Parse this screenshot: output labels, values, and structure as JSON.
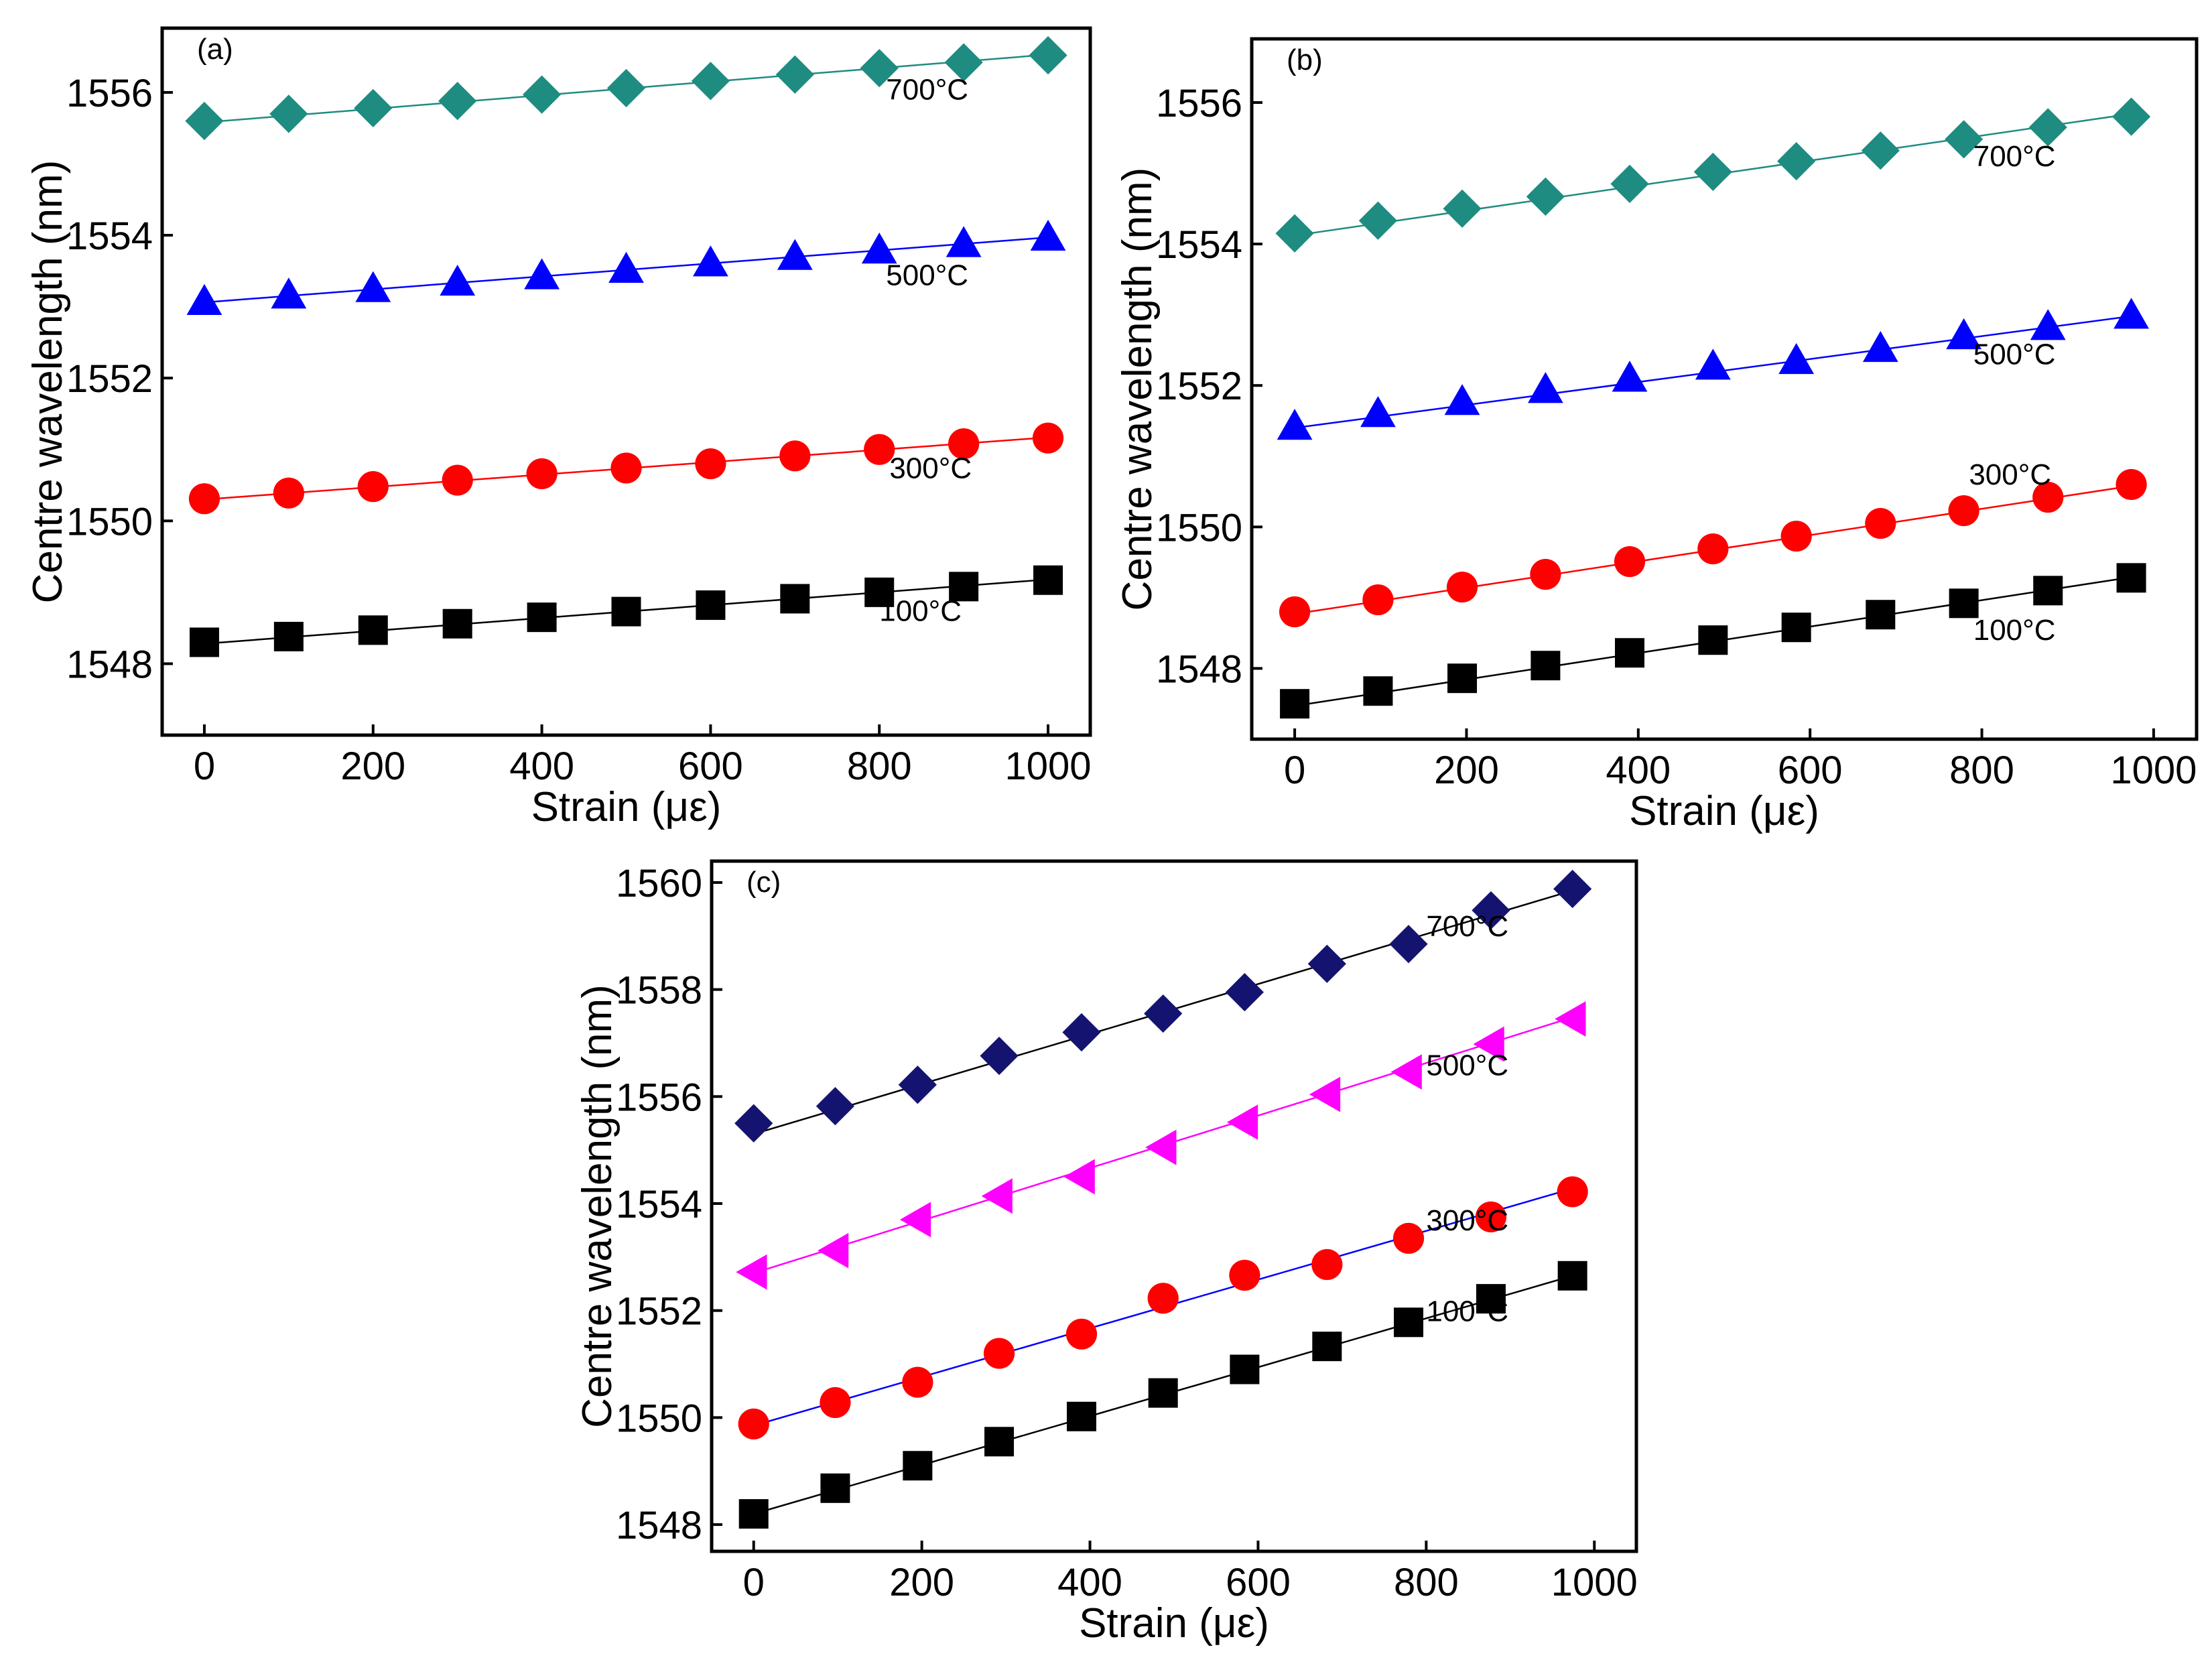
{
  "chart_data": [
    {
      "type": "scatter",
      "panel_label": "(a)",
      "xlabel": "Strain (με)",
      "ylabel": "Centre wavelength (nm)",
      "xlim": [
        -50,
        1050
      ],
      "ylim": [
        1547,
        1556.9
      ],
      "xticks": [
        "0",
        "200",
        "400",
        "600",
        "800",
        "1000"
      ],
      "yticks": [
        "1548",
        "1550",
        "1552",
        "1554",
        "1556"
      ],
      "xtick_values": [
        0,
        200,
        400,
        600,
        800,
        1000
      ],
      "ytick_values": [
        1548,
        1550,
        1552,
        1554,
        1556
      ],
      "grid": false,
      "legend": "none",
      "series": [
        {
          "name": "100°C",
          "marker": "square",
          "color": "#000000",
          "line_color": "#000000",
          "x": [
            0,
            100,
            200,
            300,
            400,
            500,
            600,
            700,
            800,
            900,
            1000
          ],
          "values": [
            1548.3,
            1548.38,
            1548.47,
            1548.56,
            1548.65,
            1548.73,
            1548.82,
            1548.91,
            1549.0,
            1549.08,
            1549.17
          ],
          "fit": [
            1548.28,
            1549.18
          ],
          "label": "100°C",
          "label_at": [
            800,
            1548.6
          ]
        },
        {
          "name": "300°C",
          "marker": "circle",
          "color": "#ff0000",
          "line_color": "#ff0000",
          "x": [
            0,
            100,
            200,
            300,
            400,
            500,
            600,
            700,
            800,
            900,
            1000
          ],
          "values": [
            1550.31,
            1550.39,
            1550.48,
            1550.57,
            1550.66,
            1550.74,
            1550.8,
            1550.91,
            1551.0,
            1551.08,
            1551.16
          ],
          "fit": [
            1550.3,
            1551.17
          ],
          "label": "300°C",
          "label_at": [
            812,
            1550.6
          ]
        },
        {
          "name": "500°C",
          "marker": "triangle-up",
          "color": "#0000ff",
          "line_color": "#0000ff",
          "x": [
            0,
            100,
            200,
            300,
            400,
            500,
            600,
            700,
            800,
            900,
            1000
          ],
          "values": [
            1553.07,
            1553.16,
            1553.25,
            1553.34,
            1553.43,
            1553.52,
            1553.61,
            1553.7,
            1553.79,
            1553.88,
            1553.97
          ],
          "fit": [
            1553.06,
            1553.97
          ],
          "label": "500°C",
          "label_at": [
            808,
            1553.3
          ]
        },
        {
          "name": "700°C",
          "marker": "diamond",
          "color": "#1e8c80",
          "line_color": "#1e8c80",
          "x": [
            0,
            100,
            200,
            300,
            400,
            500,
            600,
            700,
            800,
            900,
            1000
          ],
          "values": [
            1555.6,
            1555.7,
            1555.78,
            1555.88,
            1555.97,
            1556.06,
            1556.16,
            1556.25,
            1556.34,
            1556.42,
            1556.52
          ],
          "fit": [
            1555.58,
            1556.53
          ],
          "label": "700°C",
          "label_at": [
            808,
            1555.9
          ]
        }
      ]
    },
    {
      "type": "scatter",
      "panel_label": "(b)",
      "xlabel": "Strain (με)",
      "ylabel": "Centre wavelength (nm)",
      "xlim": [
        -50,
        1050
      ],
      "ylim": [
        1547,
        1556.9
      ],
      "xticks": [
        "0",
        "200",
        "400",
        "600",
        "800",
        "1000"
      ],
      "yticks": [
        "1548",
        "1550",
        "1552",
        "1554",
        "1556"
      ],
      "xtick_values": [
        0,
        200,
        400,
        600,
        800,
        1000
      ],
      "ytick_values": [
        1548,
        1550,
        1552,
        1554,
        1556
      ],
      "grid": false,
      "legend": "none",
      "series": [
        {
          "name": "100°C",
          "marker": "square",
          "color": "#000000",
          "line_color": "#000000",
          "x": [
            0,
            97,
            195,
            292,
            390,
            487,
            584,
            682,
            779,
            877,
            974
          ],
          "values": [
            1547.5,
            1547.68,
            1547.86,
            1548.04,
            1548.22,
            1548.4,
            1548.58,
            1548.76,
            1548.92,
            1549.1,
            1549.28
          ],
          "fit": [
            1547.47,
            1549.29
          ],
          "label": "100°C",
          "label_at": [
            790,
            1548.4
          ]
        },
        {
          "name": "300°C",
          "marker": "circle",
          "color": "#ff0000",
          "line_color": "#ff0000",
          "x": [
            0,
            97,
            195,
            292,
            390,
            487,
            584,
            682,
            779,
            877,
            974
          ],
          "values": [
            1548.8,
            1548.97,
            1549.15,
            1549.33,
            1549.51,
            1549.69,
            1549.87,
            1550.05,
            1550.23,
            1550.42,
            1550.6
          ],
          "fit": [
            1548.77,
            1550.58
          ],
          "label": "300°C",
          "label_at": [
            785,
            1550.6
          ]
        },
        {
          "name": "500°C",
          "marker": "triangle-up",
          "color": "#0000ff",
          "line_color": "#0000ff",
          "x": [
            0,
            97,
            195,
            292,
            390,
            487,
            584,
            682,
            779,
            877,
            974
          ],
          "values": [
            1551.42,
            1551.6,
            1551.77,
            1551.94,
            1552.1,
            1552.27,
            1552.35,
            1552.52,
            1552.7,
            1552.83,
            1552.99
          ],
          "fit": [
            1551.4,
            1552.98
          ],
          "label": "500°C",
          "label_at": [
            790,
            1552.3
          ]
        },
        {
          "name": "700°C",
          "marker": "diamond",
          "color": "#1e8c80",
          "line_color": "#1e8c80",
          "x": [
            0,
            97,
            195,
            292,
            390,
            487,
            584,
            682,
            779,
            877,
            974
          ],
          "values": [
            1554.15,
            1554.33,
            1554.5,
            1554.67,
            1554.85,
            1555.02,
            1555.17,
            1555.32,
            1555.48,
            1555.65,
            1555.8
          ],
          "fit": [
            1554.12,
            1555.84
          ],
          "label": "700°C",
          "label_at": [
            790,
            1555.1
          ]
        }
      ]
    },
    {
      "type": "scatter",
      "panel_label": "(c)",
      "xlabel": "Strain (με)",
      "ylabel": "Centre wavelength (nm)",
      "xlim": [
        -50,
        1050
      ],
      "ylim": [
        1547.5,
        1560.4
      ],
      "xticks": [
        "0",
        "200",
        "400",
        "600",
        "800",
        "1000"
      ],
      "yticks": [
        "1548",
        "1550",
        "1552",
        "1554",
        "1556",
        "1558",
        "1560"
      ],
      "xtick_values": [
        0,
        200,
        400,
        600,
        800,
        1000
      ],
      "ytick_values": [
        1548,
        1550,
        1552,
        1554,
        1556,
        1558,
        1560
      ],
      "grid": false,
      "legend": "none",
      "series": [
        {
          "name": "100°C",
          "marker": "square",
          "color": "#000000",
          "line_color": "#000000",
          "x": [
            0,
            97,
            195,
            292,
            390,
            487,
            584,
            682,
            779,
            877,
            974
          ],
          "values": [
            1548.2,
            1548.68,
            1549.1,
            1549.55,
            1550.02,
            1550.46,
            1550.9,
            1551.33,
            1551.78,
            1552.22,
            1552.65
          ],
          "fit": [
            1548.2,
            1552.65
          ],
          "label": "100°C",
          "label_at": [
            800,
            1551.8
          ]
        },
        {
          "name": "300°C",
          "marker": "circle",
          "color": "#ff0000",
          "line_color": "#0000ff",
          "x": [
            0,
            97,
            195,
            292,
            390,
            487,
            584,
            682,
            779,
            877,
            974
          ],
          "values": [
            1549.88,
            1550.28,
            1550.66,
            1551.2,
            1551.56,
            1552.23,
            1552.66,
            1552.86,
            1553.35,
            1553.75,
            1554.22
          ],
          "fit": [
            1549.85,
            1554.28
          ],
          "label": "300°C",
          "label_at": [
            800,
            1553.5
          ]
        },
        {
          "name": "500°C",
          "marker": "triangle-left",
          "color": "#ff00ff",
          "line_color": "#ff00ff",
          "x": [
            0,
            97,
            195,
            292,
            390,
            487,
            584,
            682,
            779,
            877,
            974
          ],
          "values": [
            1552.72,
            1553.12,
            1553.7,
            1554.14,
            1554.5,
            1555.05,
            1555.52,
            1556.04,
            1556.46,
            1556.98,
            1557.45
          ],
          "fit": [
            1552.7,
            1557.48
          ],
          "label": "500°C",
          "label_at": [
            800,
            1556.4
          ]
        },
        {
          "name": "700°C",
          "marker": "diamond",
          "color": "#141470",
          "line_color": "#000000",
          "x": [
            0,
            97,
            195,
            292,
            390,
            487,
            584,
            682,
            779,
            877,
            974
          ],
          "values": [
            1555.5,
            1555.82,
            1556.22,
            1556.76,
            1557.2,
            1557.55,
            1557.95,
            1558.48,
            1558.85,
            1559.48,
            1559.88
          ],
          "fit": [
            1555.3,
            1559.85
          ],
          "label": "700°C",
          "label_at": [
            800,
            1559.0
          ]
        }
      ]
    }
  ]
}
